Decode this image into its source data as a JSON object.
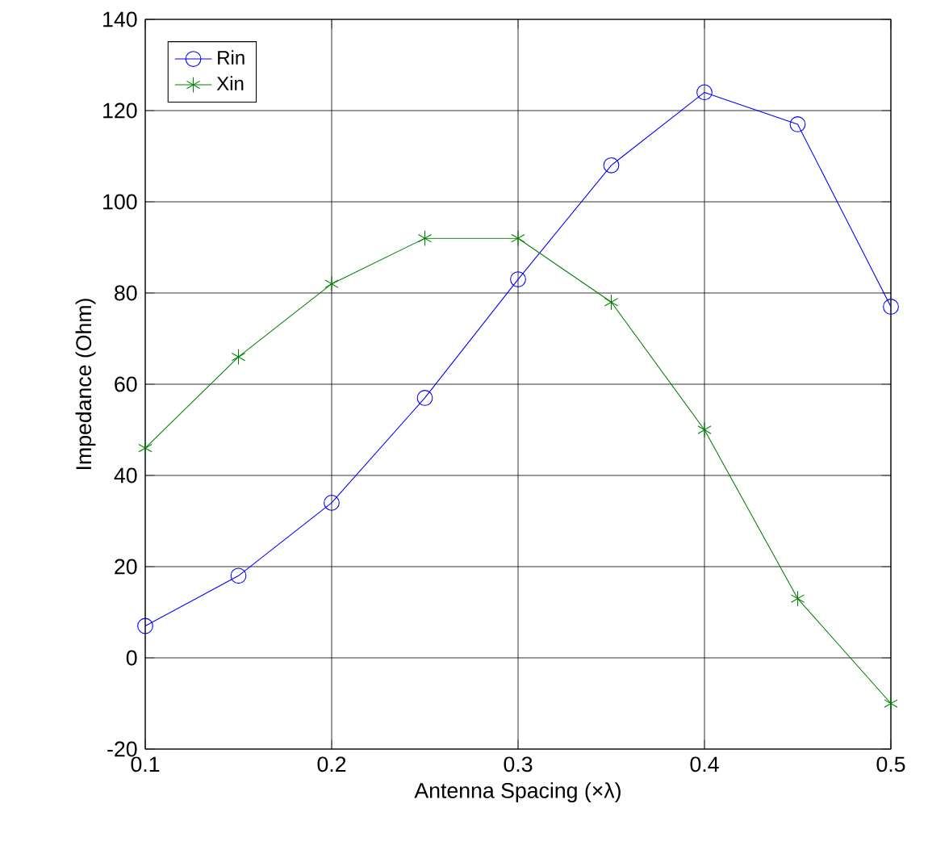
{
  "chart_data": {
    "type": "line",
    "xlabel": "Antenna Spacing (×λ)",
    "ylabel": "Impedance (Ohm)",
    "x": [
      0.1,
      0.15,
      0.2,
      0.25,
      0.3,
      0.35,
      0.4,
      0.45,
      0.5
    ],
    "series": [
      {
        "name": "Rin",
        "color": "#0000ff",
        "marker": "circle",
        "values": [
          7,
          18,
          34,
          57,
          83,
          108,
          124,
          117,
          77
        ]
      },
      {
        "name": "Xin",
        "color": "#008000",
        "marker": "cross",
        "values": [
          46,
          66,
          82,
          92,
          92,
          78,
          50,
          13,
          -10
        ]
      }
    ],
    "xlim": [
      0.1,
      0.5
    ],
    "ylim": [
      -20,
      140
    ],
    "xticks": [
      0.1,
      0.2,
      0.3,
      0.4,
      0.5
    ],
    "yticks": [
      -20,
      0,
      20,
      40,
      60,
      80,
      100,
      120,
      140
    ],
    "grid": true,
    "legend": "top left",
    "line_style": "solid"
  }
}
